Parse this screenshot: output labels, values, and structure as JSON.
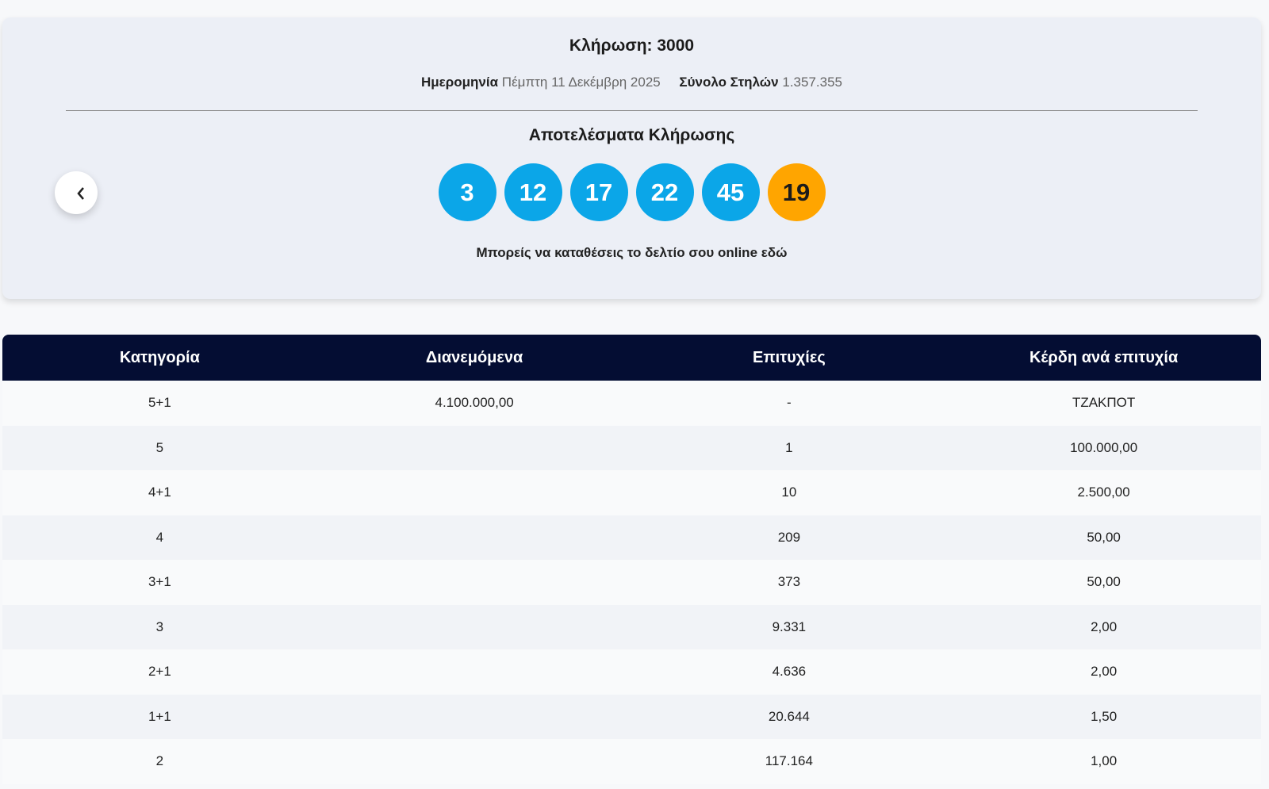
{
  "header": {
    "title": "Κλήρωση: 3000",
    "date_label": "Ημερομηνία",
    "date": "Πέμπτη 11 Δεκέμβρη 2025",
    "columns_label": "Σύνολο Στηλών",
    "columns": "1.357.355"
  },
  "results": {
    "title": "Αποτελέσματα Κλήρωσης",
    "numbers": [
      3,
      12,
      17,
      22,
      45
    ],
    "bonus": 19,
    "note": "Μπορείς να καταθέσεις το δελτίο σου online εδώ"
  },
  "table": {
    "headers": [
      "Κατηγορία",
      "Διανεμόμενα",
      "Επιτυχίες",
      "Κέρδη ανά επιτυχία"
    ],
    "rows": [
      {
        "category": "5+1",
        "distributed": "4.100.000,00",
        "winners": "-",
        "prize": "ΤΖΑΚΠΟΤ"
      },
      {
        "category": "5",
        "winners": "1",
        "prize": "100.000,00"
      },
      {
        "category": "4+1",
        "winners": "10",
        "prize": "2.500,00"
      },
      {
        "category": "4",
        "winners": "209",
        "prize": "50,00"
      },
      {
        "category": "3+1",
        "winners": "373",
        "prize": "50,00"
      },
      {
        "category": "3",
        "winners": "9.331",
        "prize": "2,00"
      },
      {
        "category": "2+1",
        "winners": "4.636",
        "prize": "2,00"
      },
      {
        "category": "1+1",
        "winners": "20.644",
        "prize": "1,50"
      },
      {
        "category": "2",
        "winners": "117.164",
        "prize": "1,00"
      }
    ]
  }
}
